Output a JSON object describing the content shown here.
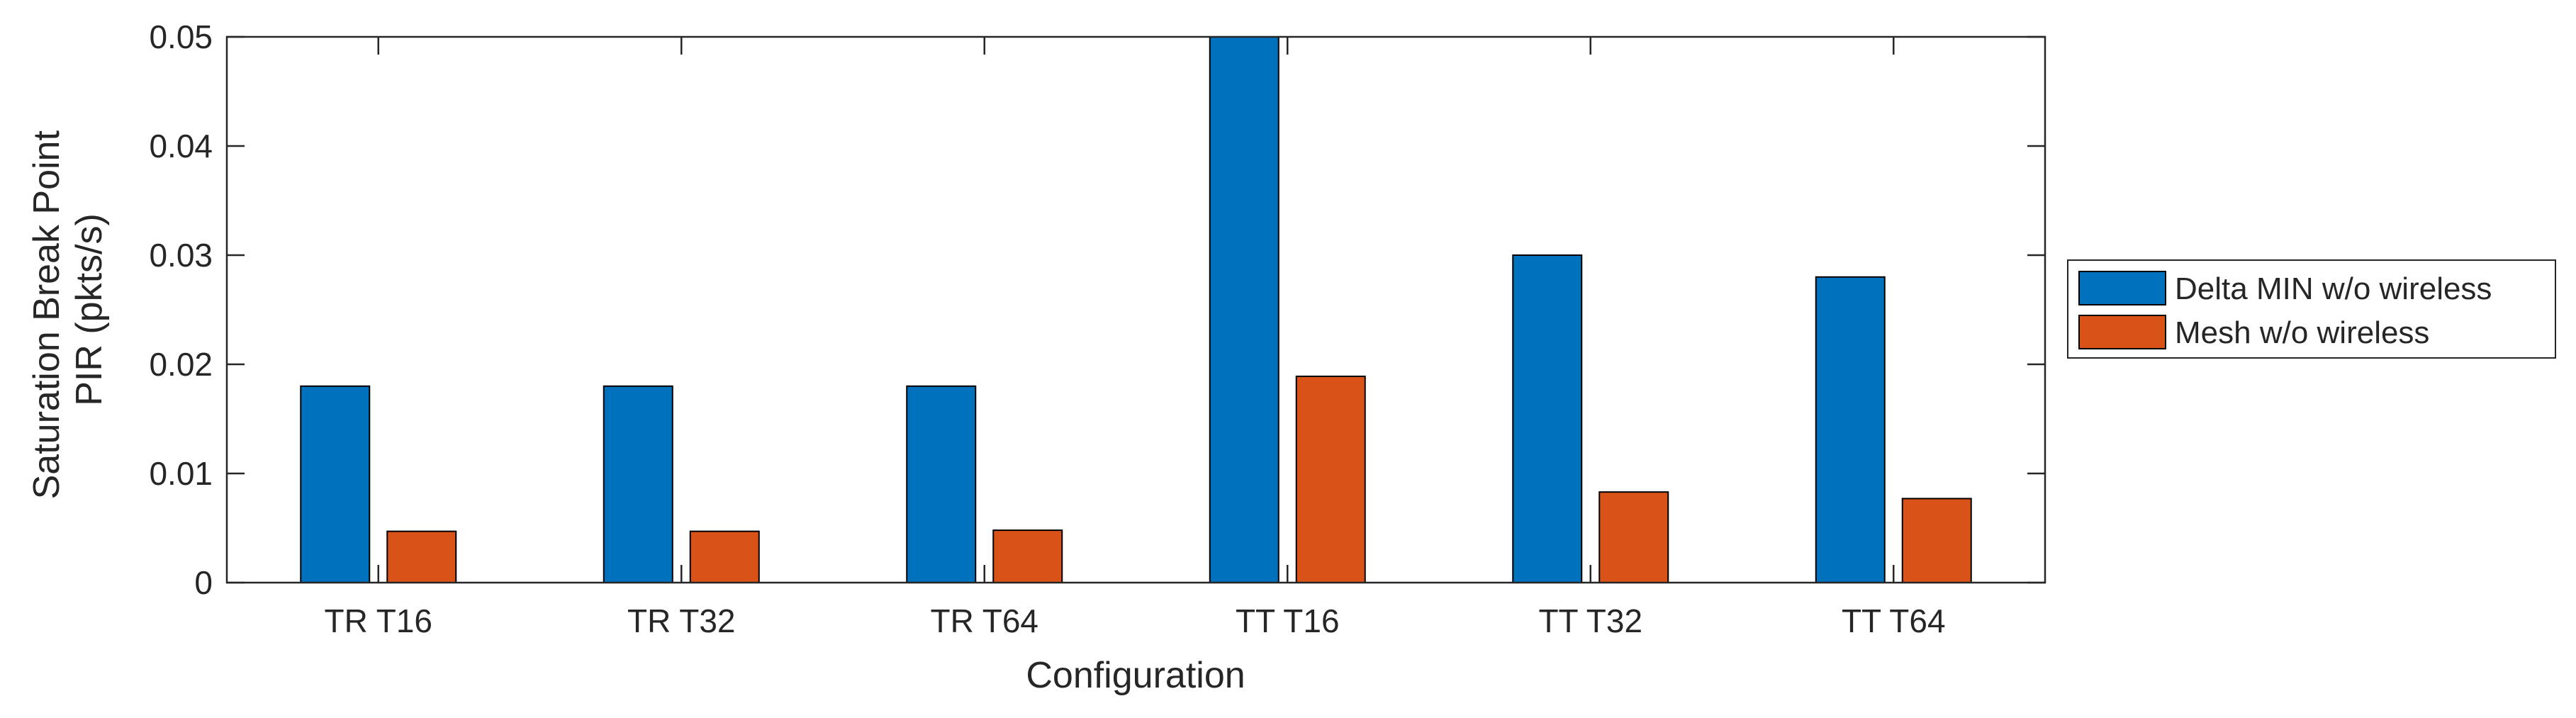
{
  "chart_data": {
    "type": "bar",
    "title": "",
    "xlabel": "Configuration",
    "ylabel": [
      "Saturation Break Point",
      "PIR (pkts/s)"
    ],
    "categories": [
      "TR T16",
      "TR T32",
      "TR T64",
      "TT T16",
      "TT T32",
      "TT T64"
    ],
    "series": [
      {
        "name": "Delta MIN w/o wireless",
        "color": "#0072BD",
        "values": [
          0.018,
          0.018,
          0.018,
          0.05,
          0.03,
          0.028
        ]
      },
      {
        "name": "Mesh w/o wireless",
        "color": "#D95319",
        "values": [
          0.0047,
          0.0047,
          0.0048,
          0.0189,
          0.0083,
          0.0077
        ]
      }
    ],
    "ylim": [
      0,
      0.05
    ],
    "yticks": [
      "0",
      "0.01",
      "0.02",
      "0.03",
      "0.04",
      "0.05"
    ],
    "ytick_values": [
      0,
      0.01,
      0.02,
      0.03,
      0.04,
      0.05
    ],
    "grid": false,
    "legend_position": "outside-right"
  }
}
